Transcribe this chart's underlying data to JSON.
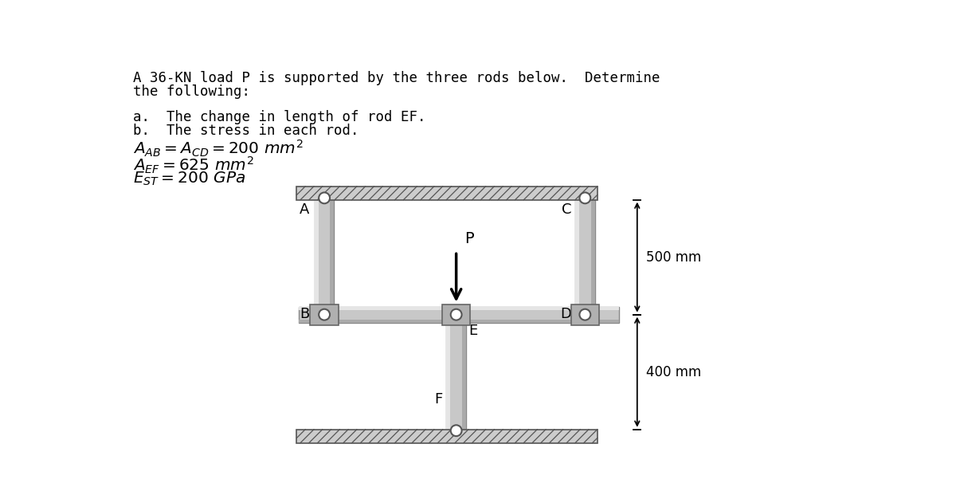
{
  "bg_color": "#ffffff",
  "text_color": "#000000",
  "hatch_fill": "#cccccc",
  "hatch_line": "#555555",
  "rod_face": "#c8c8c8",
  "rod_edge": "#888888",
  "plate_face": "#b0b0b0",
  "plate_edge": "#666666",
  "pin_face": "#ffffff",
  "pin_edge": "#555555",
  "title_line1": "A 36-KN load P is supported by the three rods below.  Determine",
  "title_line2": "the following:",
  "item_a": "a.  The change in length of rod EF.",
  "item_b": "b.  The stress in each rod.",
  "label_500": "500 mm",
  "label_400": "400 mm",
  "label_P": "P",
  "label_A": "A",
  "label_B": "B",
  "label_C": "C",
  "label_D": "D",
  "label_E": "E",
  "label_F": "F"
}
